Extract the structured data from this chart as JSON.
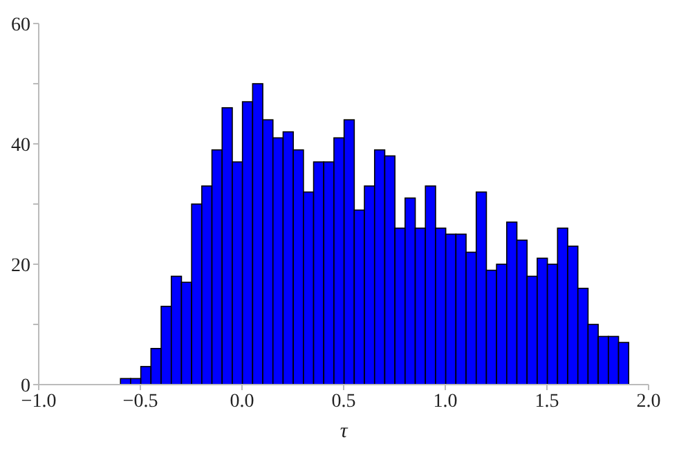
{
  "chart_data": {
    "type": "histogram",
    "xlabel": "τ",
    "bins": [
      -0.6,
      -0.55,
      -0.5,
      -0.45,
      -0.4,
      -0.35,
      -0.3,
      -0.25,
      -0.2,
      -0.15,
      -0.1,
      -0.05,
      0,
      0.05,
      0.1,
      0.15,
      0.2,
      0.25,
      0.3,
      0.35,
      0.4,
      0.45,
      0.5,
      0.55,
      0.6,
      0.65,
      0.7,
      0.75,
      0.8,
      0.85,
      0.9,
      0.95,
      1,
      1.05,
      1.1,
      1.15,
      1.2,
      1.25,
      1.3,
      1.35,
      1.4,
      1.45,
      1.5,
      1.55,
      1.6,
      1.65,
      1.7,
      1.75,
      1.8,
      1.85,
      1.9
    ],
    "values": [
      1,
      1,
      3,
      6,
      13,
      18,
      17,
      30,
      33,
      39,
      46,
      37,
      47,
      50,
      44,
      41,
      42,
      39,
      32,
      37,
      37,
      41,
      44,
      29,
      33,
      39,
      38,
      26,
      31,
      26,
      33,
      26,
      25,
      25,
      22,
      32,
      19,
      20,
      27,
      24,
      18,
      21,
      20,
      26,
      23,
      16,
      10,
      8,
      8,
      7
    ],
    "color": "#0000ff",
    "xlim": [
      -1,
      2
    ],
    "xticks": [
      {
        "value": -1,
        "label": "−1.0"
      },
      {
        "value": -0.5,
        "label": "−0.5"
      },
      {
        "value": 0,
        "label": "0.0"
      },
      {
        "value": 0.5,
        "label": "0.5"
      },
      {
        "value": 1,
        "label": "1.0"
      },
      {
        "value": 1.5,
        "label": "1.5"
      },
      {
        "value": 2,
        "label": "2.0"
      }
    ],
    "ylim": [
      0,
      60
    ],
    "yticks": [
      0,
      {
        "value": 10,
        "label": null
      },
      20,
      {
        "value": 30,
        "label": null
      },
      40,
      {
        "value": 50,
        "label": null
      },
      60
    ],
    "grid": false,
    "legend": false
  }
}
